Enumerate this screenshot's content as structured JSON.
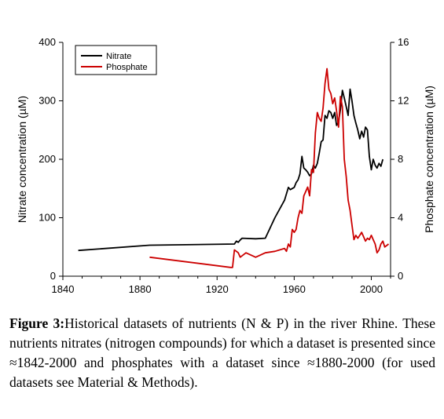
{
  "chart_data": {
    "type": "line",
    "xlabel": "",
    "ylabel": "Nitrate concentration (µM)",
    "y2label": "Phosphate concentration (µM)",
    "xlim": [
      1840,
      2010
    ],
    "ylim": [
      0,
      400
    ],
    "y2lim": [
      0,
      16
    ],
    "x_ticks": [
      1840,
      1880,
      1920,
      1960,
      2000
    ],
    "y_ticks": [
      0,
      100,
      200,
      300,
      400
    ],
    "y2_ticks": [
      0,
      4,
      8,
      12,
      16
    ],
    "grid": false,
    "legend_position": "top-left",
    "series": [
      {
        "name": "Nitrate",
        "axis": "left",
        "color": "#000000",
        "points": [
          [
            1848,
            44
          ],
          [
            1885,
            53
          ],
          [
            1929,
            55
          ],
          [
            1930,
            60
          ],
          [
            1931,
            58
          ],
          [
            1932,
            62
          ],
          [
            1933,
            65
          ],
          [
            1940,
            64
          ],
          [
            1945,
            65
          ],
          [
            1950,
            100
          ],
          [
            1955,
            130
          ],
          [
            1957,
            152
          ],
          [
            1958,
            148
          ],
          [
            1960,
            152
          ],
          [
            1961,
            160
          ],
          [
            1962,
            165
          ],
          [
            1963,
            175
          ],
          [
            1964,
            205
          ],
          [
            1965,
            185
          ],
          [
            1966,
            182
          ],
          [
            1967,
            178
          ],
          [
            1968,
            172
          ],
          [
            1969,
            175
          ],
          [
            1970,
            190
          ],
          [
            1971,
            185
          ],
          [
            1972,
            193
          ],
          [
            1973,
            210
          ],
          [
            1974,
            230
          ],
          [
            1975,
            233
          ],
          [
            1976,
            275
          ],
          [
            1977,
            270
          ],
          [
            1978,
            283
          ],
          [
            1979,
            280
          ],
          [
            1980,
            270
          ],
          [
            1981,
            280
          ],
          [
            1982,
            258
          ],
          [
            1983,
            264
          ],
          [
            1984,
            285
          ],
          [
            1985,
            318
          ],
          [
            1986,
            305
          ],
          [
            1987,
            290
          ],
          [
            1988,
            275
          ],
          [
            1989,
            320
          ],
          [
            1990,
            300
          ],
          [
            1991,
            275
          ],
          [
            1992,
            262
          ],
          [
            1993,
            250
          ],
          [
            1994,
            235
          ],
          [
            1995,
            248
          ],
          [
            1996,
            238
          ],
          [
            1997,
            255
          ],
          [
            1998,
            250
          ],
          [
            1999,
            205
          ],
          [
            2000,
            182
          ],
          [
            2001,
            200
          ],
          [
            2002,
            190
          ],
          [
            2003,
            185
          ],
          [
            2004,
            193
          ],
          [
            2005,
            188
          ],
          [
            2006,
            200
          ]
        ]
      },
      {
        "name": "Phosphate",
        "axis": "right",
        "color": "#cc0000",
        "points": [
          [
            1885,
            1.3
          ],
          [
            1927,
            0.6
          ],
          [
            1928,
            0.6
          ],
          [
            1929,
            1.8
          ],
          [
            1930,
            1.7
          ],
          [
            1931,
            1.6
          ],
          [
            1932,
            1.3
          ],
          [
            1935,
            1.6
          ],
          [
            1940,
            1.3
          ],
          [
            1945,
            1.6
          ],
          [
            1950,
            1.7
          ],
          [
            1955,
            1.9
          ],
          [
            1956,
            1.7
          ],
          [
            1957,
            2.2
          ],
          [
            1958,
            2.0
          ],
          [
            1959,
            3.2
          ],
          [
            1960,
            3.0
          ],
          [
            1961,
            3.2
          ],
          [
            1962,
            4.0
          ],
          [
            1963,
            4.5
          ],
          [
            1964,
            4.3
          ],
          [
            1965,
            5.5
          ],
          [
            1966,
            5.8
          ],
          [
            1967,
            6.1
          ],
          [
            1968,
            5.5
          ],
          [
            1969,
            7.3
          ],
          [
            1970,
            7.1
          ],
          [
            1971,
            9.8
          ],
          [
            1972,
            11.2
          ],
          [
            1973,
            10.8
          ],
          [
            1974,
            10.6
          ],
          [
            1975,
            11.5
          ],
          [
            1976,
            13.2
          ],
          [
            1977,
            14.2
          ],
          [
            1978,
            12.8
          ],
          [
            1979,
            12.5
          ],
          [
            1980,
            11.8
          ],
          [
            1981,
            12.2
          ],
          [
            1982,
            11.3
          ],
          [
            1983,
            10.2
          ],
          [
            1984,
            12.3
          ],
          [
            1985,
            11.6
          ],
          [
            1986,
            8.0
          ],
          [
            1987,
            6.8
          ],
          [
            1988,
            5.2
          ],
          [
            1989,
            4.5
          ],
          [
            1990,
            3.5
          ],
          [
            1991,
            2.5
          ],
          [
            1992,
            2.8
          ],
          [
            1993,
            2.6
          ],
          [
            1994,
            2.8
          ],
          [
            1995,
            3.0
          ],
          [
            1996,
            2.7
          ],
          [
            1997,
            2.4
          ],
          [
            1998,
            2.6
          ],
          [
            1999,
            2.5
          ],
          [
            2000,
            2.8
          ],
          [
            2001,
            2.5
          ],
          [
            2002,
            2.2
          ],
          [
            2003,
            1.6
          ],
          [
            2004,
            1.8
          ],
          [
            2005,
            2.2
          ],
          [
            2006,
            2.4
          ],
          [
            2007,
            2.0
          ],
          [
            2008,
            2.1
          ],
          [
            2009,
            2.2
          ]
        ]
      }
    ]
  },
  "caption": {
    "label": "Figure 3:",
    "text": "Historical datasets of nutrients (N & P) in the river Rhine. These nutrients nitrates (nitrogen compounds) for which a dataset is presented since ≈1842-2000 and phosphates with a dataset since ≈1880-2000 (for used datasets see Material & Methods)."
  }
}
